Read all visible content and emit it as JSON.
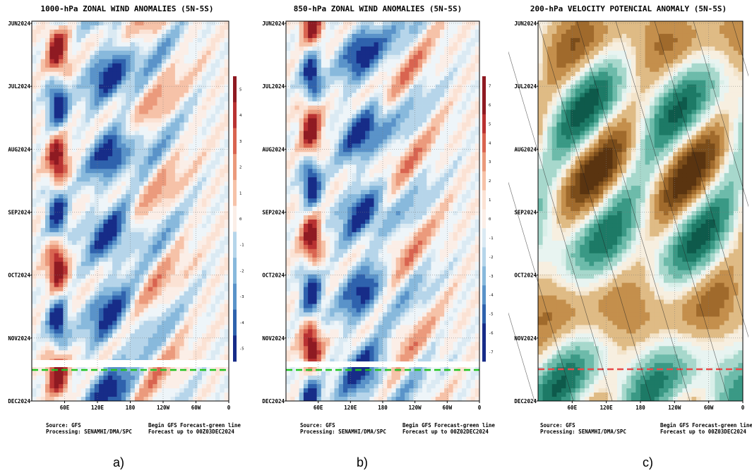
{
  "panels": [
    {
      "id": "a",
      "title": "1000-hPa ZONAL WIND ANOMALIES (5N-5S)",
      "source": "Source: GFS",
      "processing": "Processing: SENAMHI/DMA/SPC",
      "note1": "Begin GFS Forecast-green line",
      "note2": "Forecast up to 00Z03DEC2024",
      "label": "a)",
      "colorbar": {
        "ticks": [
          "5",
          "4",
          "3",
          "2",
          "1",
          "0",
          "-1",
          "-2",
          "-3",
          "-4",
          "-5"
        ]
      }
    },
    {
      "id": "b",
      "title": "850-hPa ZONAL WIND ANOMALIES (5N-5S)",
      "source": "Source: GFS",
      "processing": "Processing: SENAMHI/DMA/SPC",
      "note1": "Begin GFS Forecast-green line",
      "note2": "Forecast up to 00Z02DEC2024",
      "label": "b)",
      "colorbar": {
        "ticks": [
          "7",
          "6",
          "5",
          "4",
          "3",
          "2",
          "1",
          "0",
          "-1",
          "-2",
          "-3",
          "-4",
          "-5",
          "-6",
          "-7"
        ]
      }
    },
    {
      "id": "c",
      "title": "200-hPa VELOCITY POTENCIAL ANOMALY (5N-5S)",
      "source": "Source: GFS",
      "processing": "Processing: SENAMHI/DMA/SPC",
      "note1": "Begin GFS Forecast-green line",
      "note2": "Forecast up to 00Z03DEC2024",
      "label": "c)"
    }
  ],
  "chart_data": [
    {
      "type": "heatmap",
      "title": "1000-hPa ZONAL WIND ANOMALIES (5N-5S)",
      "x_tick_labels": [
        "60E",
        "120E",
        "180",
        "120W",
        "60W",
        "0"
      ],
      "y_tick_labels": [
        "JUN2024",
        "JUL2024",
        "AUG2024",
        "SEP2024",
        "OCT2024",
        "NOV2024",
        "DEC2024"
      ],
      "colorbar_range": [
        -5,
        5
      ],
      "colors": {
        "positive": "#a5262c",
        "negative": "#1f3f9a",
        "forecast_line": "#22c522"
      }
    },
    {
      "type": "heatmap",
      "title": "850-hPa ZONAL WIND ANOMALIES (5N-5S)",
      "x_tick_labels": [
        "60E",
        "120E",
        "180",
        "120W",
        "60W",
        "0"
      ],
      "y_tick_labels": [
        "JUN2024",
        "JUL2024",
        "AUG2024",
        "SEP2024",
        "OCT2024",
        "NOV2024",
        "DEC2024"
      ],
      "colorbar_range": [
        -7,
        7
      ],
      "colors": {
        "positive": "#a5262c",
        "negative": "#1f3f9a",
        "forecast_line": "#22c522"
      }
    },
    {
      "type": "heatmap",
      "title": "200-hPa VELOCITY POTENCIAL ANOMALY (5N-5S)",
      "x_tick_labels": [
        "60E",
        "120E",
        "180",
        "120W",
        "60W",
        "0"
      ],
      "y_tick_labels": [
        "JUN2024",
        "JUL2024",
        "AUG2024",
        "SEP2024",
        "OCT2024",
        "NOV2024",
        "DEC2024"
      ],
      "colors": {
        "positive": "#8c5a22",
        "negative": "#1e7b6a",
        "forecast_line": "#e84a4a"
      }
    }
  ]
}
